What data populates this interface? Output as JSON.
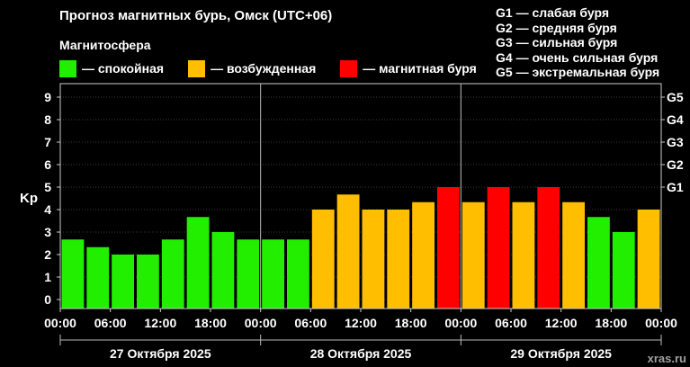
{
  "header": {
    "title": "Прогноз магнитных бурь, Омск (UTC+06)",
    "magnetosphere_label": "Магнитосфера"
  },
  "legend": [
    {
      "label": "— спокойная",
      "color": "#22ee00"
    },
    {
      "label": "— возбужденная",
      "color": "#ffbf00"
    },
    {
      "label": "— магнитная буря",
      "color": "#ff0000"
    }
  ],
  "storm_levels": [
    "G1 — слабая буря",
    "G2 — средняя буря",
    "G3 — сильная буря",
    "G4 — очень сильная буря",
    "G5 — экстремальная буря"
  ],
  "watermark": "xras.ru",
  "chart_data": {
    "type": "bar",
    "ylabel": "Kp",
    "ylim": [
      0,
      9
    ],
    "y_ticks": [
      "0",
      "1",
      "2",
      "3",
      "4",
      "5",
      "6",
      "7",
      "8",
      "9"
    ],
    "right_ticks": [
      {
        "value": 5,
        "label": "G1"
      },
      {
        "value": 6,
        "label": "G2"
      },
      {
        "value": 7,
        "label": "G3"
      },
      {
        "value": 8,
        "label": "G4"
      },
      {
        "value": 9,
        "label": "G5"
      }
    ],
    "x_tick_labels": [
      "00:00",
      "06:00",
      "12:00",
      "18:00",
      "00:00",
      "06:00",
      "12:00",
      "18:00",
      "00:00",
      "06:00",
      "12:00",
      "18:00",
      "00:00"
    ],
    "days": [
      "27 Октября 2025",
      "28 Октября 2025",
      "29 Октября 2025"
    ],
    "bar_interval_hours": 3,
    "values": [
      2.67,
      2.33,
      2.0,
      2.0,
      2.67,
      3.67,
      3.0,
      2.67,
      2.67,
      2.67,
      4.0,
      4.67,
      4.0,
      4.0,
      4.33,
      5.0,
      4.33,
      5.0,
      4.33,
      5.0,
      4.33,
      3.67,
      3.0,
      4.0
    ],
    "colors": {
      "quiet": "#22ee00",
      "active": "#ffbf00",
      "storm": "#ff0000"
    },
    "grid": true
  }
}
